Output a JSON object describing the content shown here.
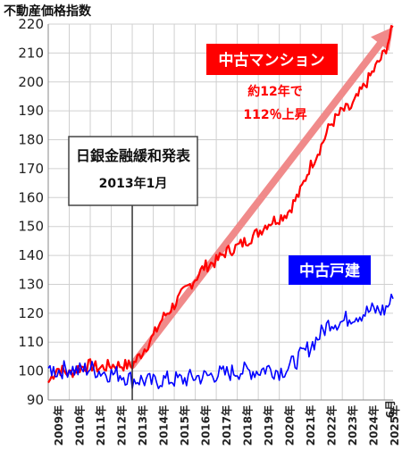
{
  "chart_data": {
    "type": "line",
    "ylabel": "不動産価格指数",
    "ylim": [
      90,
      220
    ],
    "yticks": [
      90,
      100,
      110,
      120,
      130,
      140,
      150,
      160,
      170,
      180,
      190,
      200,
      210,
      220
    ],
    "x_range": [
      "2009-01",
      "2025-06"
    ],
    "xtick_labels": [
      "2009年",
      "2010年",
      "2011年",
      "2012年",
      "2013年",
      "2014年",
      "2015年",
      "2016年",
      "2017年",
      "2018年",
      "2019年",
      "2020年",
      "2021年",
      "2022年",
      "2023年",
      "2024年",
      "2025年"
    ],
    "end_label": "6月",
    "grid": true,
    "series": [
      {
        "name": "中古マンション",
        "color": "#ff0000",
        "points": [
          [
            "2009-01",
            96
          ],
          [
            "2009-06",
            101
          ],
          [
            "2010-01",
            99
          ],
          [
            "2010-06",
            101
          ],
          [
            "2011-01",
            102
          ],
          [
            "2011-06",
            101
          ],
          [
            "2012-01",
            102
          ],
          [
            "2012-06",
            102
          ],
          [
            "2013-01",
            102
          ],
          [
            "2013-06",
            106
          ],
          [
            "2014-01",
            112
          ],
          [
            "2014-06",
            118
          ],
          [
            "2015-01",
            123
          ],
          [
            "2015-06",
            127
          ],
          [
            "2016-01",
            132
          ],
          [
            "2016-06",
            136
          ],
          [
            "2017-01",
            138
          ],
          [
            "2017-06",
            141
          ],
          [
            "2018-01",
            143
          ],
          [
            "2018-06",
            145
          ],
          [
            "2019-01",
            148
          ],
          [
            "2019-06",
            151
          ],
          [
            "2020-01",
            153
          ],
          [
            "2020-06",
            155
          ],
          [
            "2021-01",
            162
          ],
          [
            "2021-06",
            170
          ],
          [
            "2022-01",
            178
          ],
          [
            "2022-06",
            185
          ],
          [
            "2023-01",
            190
          ],
          [
            "2023-06",
            191
          ],
          [
            "2024-01",
            198
          ],
          [
            "2024-06",
            203
          ],
          [
            "2025-01",
            210
          ],
          [
            "2025-06",
            219
          ]
        ]
      },
      {
        "name": "中古戸建",
        "color": "#0000ff",
        "points": [
          [
            "2009-01",
            101
          ],
          [
            "2009-06",
            100
          ],
          [
            "2010-01",
            101
          ],
          [
            "2010-06",
            100
          ],
          [
            "2011-01",
            101
          ],
          [
            "2011-06",
            100
          ],
          [
            "2012-01",
            99
          ],
          [
            "2012-06",
            99
          ],
          [
            "2013-01",
            97
          ],
          [
            "2013-06",
            97
          ],
          [
            "2014-01",
            96
          ],
          [
            "2014-06",
            97
          ],
          [
            "2015-01",
            97
          ],
          [
            "2015-06",
            97
          ],
          [
            "2016-01",
            98
          ],
          [
            "2016-06",
            98
          ],
          [
            "2017-01",
            99
          ],
          [
            "2017-06",
            99
          ],
          [
            "2018-01",
            100
          ],
          [
            "2018-06",
            100
          ],
          [
            "2019-01",
            100
          ],
          [
            "2019-06",
            101
          ],
          [
            "2020-01",
            100
          ],
          [
            "2020-06",
            101
          ],
          [
            "2021-01",
            105
          ],
          [
            "2021-06",
            108
          ],
          [
            "2022-01",
            113
          ],
          [
            "2022-06",
            117
          ],
          [
            "2023-01",
            117
          ],
          [
            "2023-06",
            119
          ],
          [
            "2024-01",
            120
          ],
          [
            "2024-06",
            121
          ],
          [
            "2025-01",
            121
          ],
          [
            "2025-06",
            125
          ]
        ]
      }
    ],
    "annotations": {
      "mansion_label": "中古マンション",
      "mansion_note_line1": "約12年で",
      "mansion_note_line2": "112％上昇",
      "house_label": "中古戸建",
      "event_line1": "日銀金融緩和発表",
      "event_line2": "2013年1月",
      "event_date": "2013-01"
    }
  }
}
